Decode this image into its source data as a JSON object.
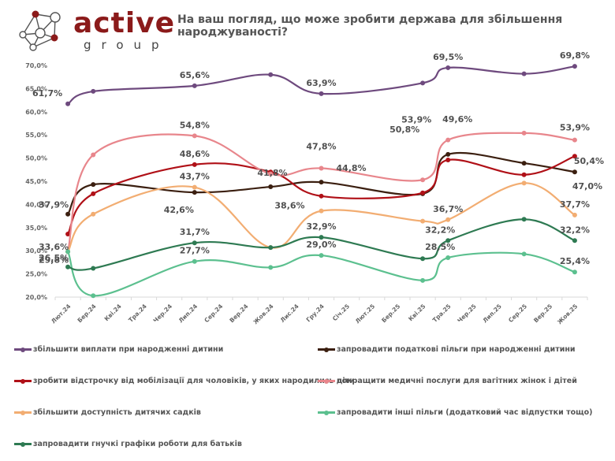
{
  "brand": {
    "name": "active",
    "sub": "group",
    "color": "#8b1a1a"
  },
  "chart_data": {
    "type": "line",
    "title": "На ваш погляд, що може зробити держава для збільшення народжуваності?",
    "xlabel": "",
    "ylabel": "",
    "ylim": [
      20,
      70
    ],
    "yticks": [
      "20,0%",
      "25,0%",
      "30,0%",
      "35,0%",
      "40,0%",
      "45,0%",
      "50,0%",
      "55,0%",
      "60,0%",
      "65,0%",
      "70,0%"
    ],
    "ytick_values": [
      20,
      25,
      30,
      35,
      40,
      45,
      50,
      55,
      60,
      65,
      70
    ],
    "grid": false,
    "legend_position": "bottom",
    "categories": [
      "Лют.24",
      "Бер.24",
      "Кві.24",
      "Тра.24",
      "Чер.24",
      "Лип.24",
      "Сер.24",
      "Вер.24",
      "Жов.24",
      "Лис.24",
      "Гру.24",
      "Січ.25",
      "Лют.25",
      "Бер.25",
      "Кві.25",
      "Тра.25",
      "Чер.25",
      "Лип.25",
      "Сер.25",
      "Вер.25",
      "Жов.25"
    ],
    "point_indices": [
      0,
      1,
      5,
      8,
      10,
      14,
      15,
      18,
      20
    ],
    "series": [
      {
        "name": "збільшити виплати при народженні дитини",
        "color": "#6e4a7e",
        "values": [
          61.7,
          64.4,
          65.6,
          68.0,
          63.9,
          66.2,
          69.5,
          68.2,
          69.8
        ],
        "labels": [
          {
            "i": 0,
            "text": "61,7%"
          },
          {
            "i": 2,
            "text": "65,6%"
          },
          {
            "i": 4,
            "text": "63,9%"
          },
          {
            "i": 6,
            "text": "69,5%"
          },
          {
            "i": 8,
            "text": "69,8%"
          }
        ]
      },
      {
        "name": "запровадити податкові пільги при народженні дитини",
        "color": "#3b1f10",
        "values": [
          37.9,
          44.3,
          42.6,
          43.8,
          44.8,
          42.3,
          50.8,
          48.9,
          47.0
        ],
        "labels": [
          {
            "i": 0,
            "text": "37,9%"
          },
          {
            "i": 2,
            "text": "42,6%"
          },
          {
            "i": 4,
            "text": "44,8%"
          },
          {
            "i": 6,
            "text": "50,8%"
          },
          {
            "i": 8,
            "text": "47,0%"
          }
        ]
      },
      {
        "name": "зробити відстрочку від мобілізації для чоловіків, у яких народились діти",
        "color": "#b01017",
        "values": [
          33.6,
          42.3,
          48.6,
          47.0,
          41.8,
          42.5,
          49.6,
          46.4,
          50.4
        ],
        "labels": [
          {
            "i": 0,
            "text": "33,6%"
          },
          {
            "i": 2,
            "text": "48,6%"
          },
          {
            "i": 4,
            "text": "41,8%"
          },
          {
            "i": 6,
            "text": "49,6%"
          },
          {
            "i": 8,
            "text": "50,4%"
          }
        ]
      },
      {
        "name": "покращити медичні послуги для вагітних жінок і дітей",
        "color": "#e8868c",
        "values": [
          29.8,
          50.7,
          54.8,
          46.6,
          47.8,
          45.3,
          53.9,
          55.4,
          53.9
        ],
        "labels": [
          {
            "i": 2,
            "text": "54,8%"
          },
          {
            "i": 4,
            "text": "47,8%"
          },
          {
            "i": 6,
            "text": "53,9%"
          },
          {
            "i": 8,
            "text": "53,9%"
          }
        ]
      },
      {
        "name": "збільшити доступність дитячих садків",
        "color": "#f2ad72",
        "values": [
          29.8,
          37.9,
          43.7,
          30.7,
          38.6,
          36.4,
          36.7,
          44.6,
          37.7
        ],
        "labels": [
          {
            "i": 0,
            "text": "29,8%"
          },
          {
            "i": 2,
            "text": "43,7%"
          },
          {
            "i": 4,
            "text": "38,6%"
          },
          {
            "i": 6,
            "text": "36,7%"
          },
          {
            "i": 8,
            "text": "37,7%"
          }
        ]
      },
      {
        "name": "запровадити інші пільги (додатковий час відпустки тощо)",
        "color": "#5cc08f",
        "values": [
          29.8,
          20.3,
          27.7,
          26.4,
          29.0,
          23.6,
          28.5,
          29.3,
          25.4
        ],
        "labels": [
          {
            "i": 2,
            "text": "27,7%"
          },
          {
            "i": 4,
            "text": "29,0%"
          },
          {
            "i": 6,
            "text": "28,5%"
          },
          {
            "i": 8,
            "text": "25,4%"
          }
        ]
      },
      {
        "name": "запровадити гнучкі графіки роботи для батьків",
        "color": "#2e7a52",
        "values": [
          26.5,
          26.2,
          31.7,
          30.7,
          32.9,
          28.3,
          32.2,
          36.8,
          32.2
        ],
        "labels": [
          {
            "i": 0,
            "text": "26,5%"
          },
          {
            "i": 2,
            "text": "31,7%"
          },
          {
            "i": 4,
            "text": "32,9%"
          },
          {
            "i": 6,
            "text": "32,2%"
          },
          {
            "i": 8,
            "text": "32,2%"
          }
        ]
      }
    ]
  },
  "legend": [
    {
      "label": "збільшити виплати при народженні дитини",
      "color": "#6e4a7e"
    },
    {
      "label": "запровадити податкові пільги при народженні дитини",
      "color": "#3b1f10"
    },
    {
      "label": "зробити відстрочку від мобілізації для чоловіків, у яких народились діти",
      "color": "#b01017"
    },
    {
      "label": "покращити медичні послуги для вагітних жінок і дітей",
      "color": "#e8868c"
    },
    {
      "label": "збільшити доступність дитячих садків",
      "color": "#f2ad72"
    },
    {
      "label": "запровадити інші пільги (додатковий час відпустки тощо)",
      "color": "#5cc08f"
    },
    {
      "label": "запровадити гнучкі графіки роботи для батьків",
      "color": "#2e7a52"
    }
  ]
}
